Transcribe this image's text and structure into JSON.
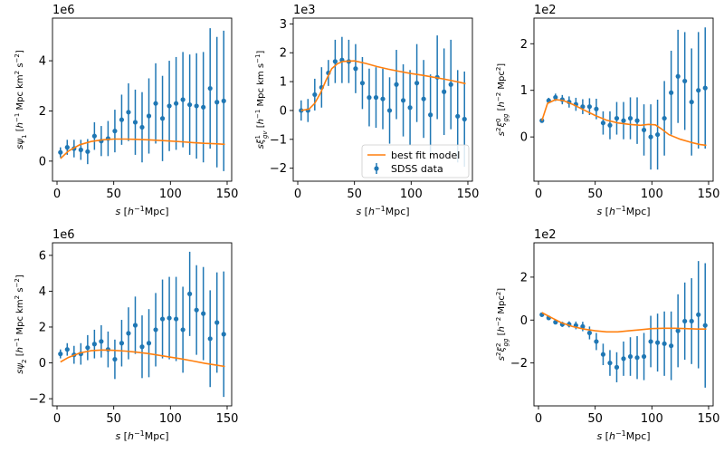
{
  "chart_data": [
    {
      "id": "p1",
      "type": "scatter",
      "multiplier": "1e6",
      "ylabel_svg": "<tspan font-style=\"italic\">s</tspan><tspan font-style=\"italic\">ψ</tspan><tspan baseline-shift=\"sub\" font-size=\"7\">1</tspan> [<tspan font-style=\"italic\">h</tspan><tspan baseline-shift=\"super\" font-size=\"7\">−1</tspan> Mpc km<tspan baseline-shift=\"super\" font-size=\"7\">2</tspan> s<tspan baseline-shift=\"super\" font-size=\"7\">−2</tspan>]",
      "xlabel_svg": "<tspan font-style=\"italic\">s</tspan> [<tspan font-style=\"italic\">h</tspan><tspan baseline-shift=\"super\" font-size=\"8\">−1</tspan>Mpc]",
      "xlim": [
        -4,
        154
      ],
      "ylim": [
        -0.8,
        5.7
      ],
      "xticks": [
        0,
        50,
        100,
        150
      ],
      "yticks": [
        0,
        2,
        4
      ],
      "x": [
        3,
        9,
        15,
        21,
        27,
        33,
        39,
        45,
        51,
        57,
        63,
        69,
        75,
        81,
        87,
        93,
        99,
        105,
        111,
        117,
        123,
        129,
        135,
        141,
        147
      ],
      "y": [
        0.35,
        0.55,
        0.5,
        0.45,
        0.38,
        1.0,
        0.8,
        0.9,
        1.2,
        1.65,
        1.95,
        1.55,
        1.35,
        1.8,
        2.3,
        1.7,
        2.2,
        2.3,
        2.45,
        2.25,
        2.2,
        2.15,
        2.9,
        2.35,
        2.4
      ],
      "err": [
        0.2,
        0.3,
        0.35,
        0.4,
        0.5,
        0.55,
        0.6,
        0.7,
        0.85,
        1.0,
        1.15,
        1.3,
        1.4,
        1.5,
        1.6,
        1.7,
        1.8,
        1.85,
        1.9,
        2.0,
        2.1,
        2.2,
        2.4,
        2.6,
        2.8
      ],
      "model": [
        [
          3,
          0.1
        ],
        [
          10,
          0.4
        ],
        [
          20,
          0.65
        ],
        [
          30,
          0.78
        ],
        [
          40,
          0.85
        ],
        [
          50,
          0.88
        ],
        [
          60,
          0.88
        ],
        [
          70,
          0.87
        ],
        [
          80,
          0.85
        ],
        [
          90,
          0.83
        ],
        [
          100,
          0.8
        ],
        [
          110,
          0.77
        ],
        [
          120,
          0.74
        ],
        [
          130,
          0.71
        ],
        [
          140,
          0.69
        ],
        [
          148,
          0.67
        ]
      ]
    },
    {
      "id": "p2",
      "type": "scatter",
      "multiplier": "1e3",
      "ylabel_svg": "<tspan font-style=\"italic\">s</tspan><tspan font-style=\"italic\">ξ</tspan><tspan baseline-shift=\"super\" font-size=\"7\">1</tspan><tspan dx=\"-4\" baseline-shift=\"sub\" font-size=\"7\" font-style=\"italic\">gv</tspan> [<tspan font-style=\"italic\">h</tspan><tspan baseline-shift=\"super\" font-size=\"7\">−1</tspan> Mpc km s<tspan baseline-shift=\"super\" font-size=\"7\">−1</tspan>]",
      "xlabel_svg": "<tspan font-style=\"italic\">s</tspan> [<tspan font-style=\"italic\">h</tspan><tspan baseline-shift=\"super\" font-size=\"8\">−1</tspan>Mpc]",
      "xlim": [
        -4,
        154
      ],
      "ylim": [
        -2.45,
        3.2
      ],
      "xticks": [
        0,
        50,
        100,
        150
      ],
      "yticks": [
        -2,
        -1,
        0,
        1,
        2,
        3
      ],
      "x": [
        3,
        9,
        15,
        21,
        27,
        33,
        39,
        45,
        51,
        57,
        63,
        69,
        75,
        81,
        87,
        93,
        99,
        105,
        111,
        117,
        123,
        129,
        135,
        141,
        147
      ],
      "y": [
        0.0,
        0.0,
        0.55,
        0.8,
        1.3,
        1.7,
        1.75,
        1.7,
        1.45,
        0.95,
        0.45,
        0.45,
        0.4,
        0.0,
        0.9,
        0.35,
        0.1,
        0.95,
        0.4,
        -0.15,
        1.15,
        0.65,
        0.9,
        -0.2,
        -0.3
      ],
      "err": [
        0.35,
        0.4,
        0.55,
        0.7,
        0.45,
        0.75,
        0.8,
        0.75,
        0.85,
        0.9,
        1.0,
        1.05,
        1.05,
        1.15,
        1.2,
        1.25,
        1.3,
        1.35,
        1.35,
        1.4,
        1.45,
        1.5,
        1.55,
        1.6,
        1.65
      ],
      "model": [
        [
          3,
          0.0
        ],
        [
          10,
          0.05
        ],
        [
          15,
          0.25
        ],
        [
          20,
          0.6
        ],
        [
          25,
          1.05
        ],
        [
          30,
          1.45
        ],
        [
          35,
          1.62
        ],
        [
          40,
          1.7
        ],
        [
          50,
          1.72
        ],
        [
          60,
          1.63
        ],
        [
          70,
          1.52
        ],
        [
          80,
          1.43
        ],
        [
          90,
          1.35
        ],
        [
          100,
          1.28
        ],
        [
          110,
          1.22
        ],
        [
          120,
          1.15
        ],
        [
          130,
          1.08
        ],
        [
          140,
          1.0
        ],
        [
          148,
          0.93
        ]
      ],
      "legend": {
        "position": "lower-right",
        "model_label": "best fit model",
        "data_label": "SDSS data"
      }
    },
    {
      "id": "p3",
      "type": "scatter",
      "multiplier": "1e2",
      "ylabel_svg": "<tspan font-style=\"italic\">s</tspan><tspan baseline-shift=\"super\" font-size=\"7\">2</tspan><tspan font-style=\"italic\">ξ</tspan><tspan baseline-shift=\"super\" font-size=\"7\">0</tspan><tspan dx=\"-4\" baseline-shift=\"sub\" font-size=\"7\" font-style=\"italic\">gg</tspan> [<tspan font-style=\"italic\">h</tspan><tspan baseline-shift=\"super\" font-size=\"7\">−2</tspan> Mpc<tspan baseline-shift=\"super\" font-size=\"7\">2</tspan>]",
      "xlabel_svg": "<tspan font-style=\"italic\">s</tspan> [<tspan font-style=\"italic\">h</tspan><tspan baseline-shift=\"super\" font-size=\"8\">−1</tspan>Mpc]",
      "xlim": [
        -4,
        154
      ],
      "ylim": [
        -0.95,
        2.55
      ],
      "xticks": [
        0,
        50,
        100,
        150
      ],
      "yticks": [
        0,
        1,
        2
      ],
      "x": [
        3,
        9,
        15,
        21,
        27,
        33,
        39,
        45,
        51,
        57,
        63,
        69,
        75,
        81,
        87,
        93,
        99,
        105,
        111,
        117,
        123,
        129,
        135,
        141,
        147
      ],
      "y": [
        0.35,
        0.78,
        0.85,
        0.8,
        0.75,
        0.7,
        0.65,
        0.65,
        0.6,
        0.3,
        0.25,
        0.4,
        0.35,
        0.4,
        0.35,
        0.15,
        0.0,
        0.05,
        0.4,
        0.95,
        1.3,
        1.2,
        0.75,
        1.0,
        1.05
      ],
      "err": [
        0.04,
        0.06,
        0.08,
        0.1,
        0.12,
        0.14,
        0.16,
        0.18,
        0.22,
        0.25,
        0.3,
        0.35,
        0.4,
        0.45,
        0.5,
        0.55,
        0.7,
        0.75,
        0.8,
        0.9,
        1.0,
        1.05,
        1.15,
        1.25,
        1.3
      ],
      "model": [
        [
          3,
          0.35
        ],
        [
          8,
          0.72
        ],
        [
          15,
          0.8
        ],
        [
          22,
          0.78
        ],
        [
          30,
          0.7
        ],
        [
          40,
          0.58
        ],
        [
          50,
          0.46
        ],
        [
          60,
          0.36
        ],
        [
          70,
          0.3
        ],
        [
          80,
          0.27
        ],
        [
          90,
          0.25
        ],
        [
          97,
          0.27
        ],
        [
          103,
          0.26
        ],
        [
          108,
          0.18
        ],
        [
          115,
          0.05
        ],
        [
          125,
          -0.05
        ],
        [
          135,
          -0.12
        ],
        [
          142,
          -0.16
        ],
        [
          148,
          -0.18
        ]
      ]
    },
    {
      "id": "p4",
      "type": "scatter",
      "multiplier": "1e6",
      "ylabel_svg": "<tspan font-style=\"italic\">s</tspan><tspan font-style=\"italic\">ψ</tspan><tspan baseline-shift=\"sub\" font-size=\"7\">2</tspan> [<tspan font-style=\"italic\">h</tspan><tspan baseline-shift=\"super\" font-size=\"7\">−1</tspan> Mpc km<tspan baseline-shift=\"super\" font-size=\"7\">2</tspan> s<tspan baseline-shift=\"super\" font-size=\"7\">−2</tspan>]",
      "xlabel_svg": "<tspan font-style=\"italic\">s</tspan> [<tspan font-style=\"italic\">h</tspan><tspan baseline-shift=\"super\" font-size=\"8\">−1</tspan>Mpc]",
      "xlim": [
        -4,
        154
      ],
      "ylim": [
        -2.4,
        6.7
      ],
      "xticks": [
        0,
        50,
        100,
        150
      ],
      "yticks": [
        -2,
        0,
        2,
        4,
        6
      ],
      "x": [
        3,
        9,
        15,
        21,
        27,
        33,
        39,
        45,
        51,
        57,
        63,
        69,
        75,
        81,
        87,
        93,
        99,
        105,
        111,
        117,
        123,
        129,
        135,
        141,
        147
      ],
      "y": [
        0.5,
        0.75,
        0.45,
        0.5,
        0.85,
        1.05,
        1.2,
        0.75,
        0.2,
        1.1,
        1.65,
        2.1,
        0.9,
        1.1,
        1.85,
        2.45,
        2.5,
        2.45,
        1.85,
        3.85,
        2.95,
        2.75,
        1.35,
        2.25,
        1.6
      ],
      "err": [
        0.25,
        0.35,
        0.5,
        0.6,
        0.7,
        0.8,
        0.9,
        1.0,
        1.1,
        1.3,
        1.45,
        1.6,
        1.75,
        1.9,
        2.05,
        2.2,
        2.3,
        2.35,
        2.4,
        2.35,
        2.5,
        2.6,
        2.7,
        2.8,
        3.5
      ],
      "model": [
        [
          3,
          0.05
        ],
        [
          10,
          0.3
        ],
        [
          20,
          0.55
        ],
        [
          30,
          0.68
        ],
        [
          40,
          0.72
        ],
        [
          50,
          0.7
        ],
        [
          60,
          0.66
        ],
        [
          70,
          0.6
        ],
        [
          80,
          0.52
        ],
        [
          90,
          0.42
        ],
        [
          100,
          0.32
        ],
        [
          110,
          0.22
        ],
        [
          120,
          0.1
        ],
        [
          130,
          -0.02
        ],
        [
          140,
          -0.12
        ],
        [
          148,
          -0.2
        ]
      ]
    },
    {
      "id": "p5",
      "type": "scatter",
      "multiplier": "1e2",
      "ylabel_svg": "<tspan font-style=\"italic\">s</tspan><tspan baseline-shift=\"super\" font-size=\"7\">2</tspan><tspan font-style=\"italic\">ξ</tspan><tspan baseline-shift=\"super\" font-size=\"7\">2</tspan><tspan dx=\"-4\" baseline-shift=\"sub\" font-size=\"7\" font-style=\"italic\">gg</tspan> [<tspan font-style=\"italic\">h</tspan><tspan baseline-shift=\"super\" font-size=\"7\">−2</tspan> Mpc<tspan baseline-shift=\"super\" font-size=\"7\">2</tspan>]",
      "xlabel_svg": "<tspan font-style=\"italic\">s</tspan> [<tspan font-style=\"italic\">h</tspan><tspan baseline-shift=\"super\" font-size=\"8\">−1</tspan>Mpc]",
      "xlim": [
        -4,
        154
      ],
      "ylim": [
        -4.0,
        3.6
      ],
      "xticks": [
        0,
        50,
        100,
        150
      ],
      "yticks": [
        -2,
        0,
        2
      ],
      "x": [
        3,
        9,
        15,
        21,
        27,
        33,
        39,
        45,
        51,
        57,
        63,
        69,
        75,
        81,
        87,
        93,
        99,
        105,
        111,
        117,
        123,
        129,
        135,
        141,
        147
      ],
      "y": [
        0.25,
        0.1,
        -0.1,
        -0.2,
        -0.2,
        -0.25,
        -0.3,
        -0.6,
        -1.0,
        -1.6,
        -2.0,
        -2.2,
        -1.8,
        -1.7,
        -1.75,
        -1.7,
        -1.0,
        -1.05,
        -1.1,
        -1.2,
        -0.5,
        -0.05,
        -0.05,
        0.25,
        -0.25
      ],
      "err": [
        0.06,
        0.08,
        0.1,
        0.12,
        0.14,
        0.18,
        0.22,
        0.3,
        0.4,
        0.5,
        0.6,
        0.7,
        0.8,
        0.9,
        1.0,
        1.1,
        1.2,
        1.35,
        1.5,
        1.6,
        1.7,
        1.8,
        2.0,
        2.5,
        2.9
      ],
      "model": [
        [
          3,
          0.35
        ],
        [
          10,
          0.15
        ],
        [
          20,
          -0.12
        ],
        [
          30,
          -0.3
        ],
        [
          40,
          -0.42
        ],
        [
          50,
          -0.5
        ],
        [
          60,
          -0.55
        ],
        [
          70,
          -0.55
        ],
        [
          80,
          -0.5
        ],
        [
          90,
          -0.45
        ],
        [
          100,
          -0.4
        ],
        [
          110,
          -0.38
        ],
        [
          120,
          -0.38
        ],
        [
          130,
          -0.4
        ],
        [
          140,
          -0.42
        ],
        [
          148,
          -0.42
        ]
      ]
    }
  ]
}
